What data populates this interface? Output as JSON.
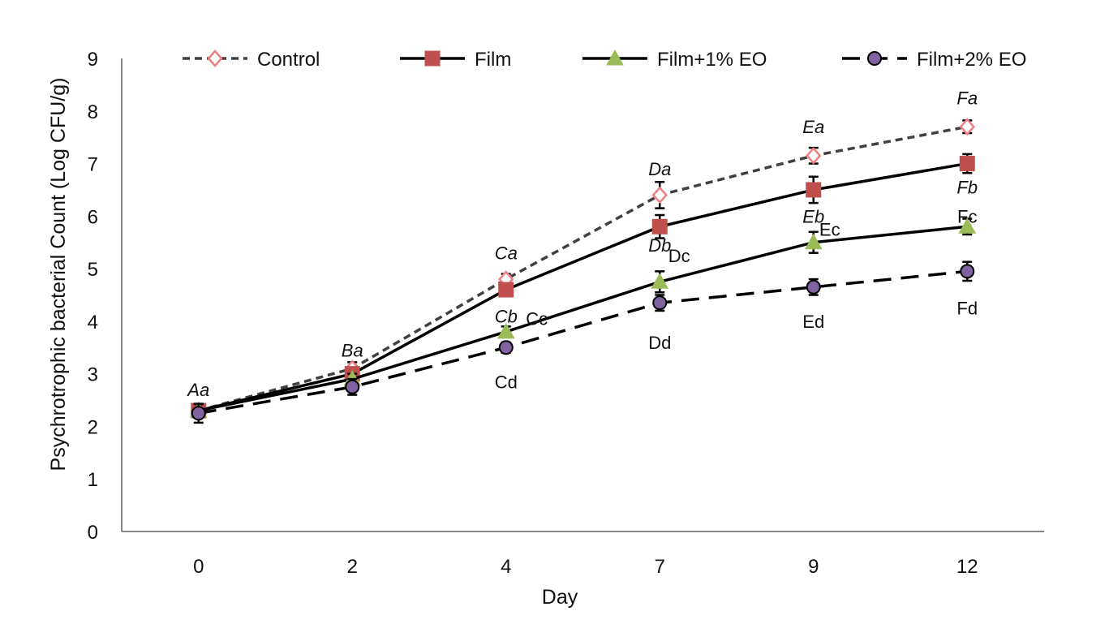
{
  "chart_data": {
    "type": "line",
    "title": "",
    "xlabel": "Day",
    "ylabel": "Psychrotrophic bacterial Count (Log CFU/g)",
    "categories": [
      "0",
      "2",
      "4",
      "7",
      "9",
      "12"
    ],
    "ylim": [
      0,
      9
    ],
    "yticks": [
      "0",
      "1",
      "2",
      "3",
      "4",
      "5",
      "6",
      "7",
      "8",
      "9"
    ],
    "grid": false,
    "legend_position": "top",
    "series": [
      {
        "name": "Control",
        "values": [
          2.3,
          3.1,
          4.8,
          6.4,
          7.15,
          7.7
        ],
        "errors": [
          0.12,
          0.12,
          0.1,
          0.25,
          0.15,
          0.12
        ],
        "color": "#f08080",
        "line_color": "#404040",
        "dash": "dash",
        "marker": "diamond"
      },
      {
        "name": "Film",
        "values": [
          2.3,
          3.0,
          4.6,
          5.8,
          6.5,
          7.0
        ],
        "errors": [
          0.12,
          0.12,
          0.12,
          0.22,
          0.25,
          0.18
        ],
        "color": "#c0504d",
        "line_color": "#000000",
        "dash": "solid",
        "marker": "square"
      },
      {
        "name": "Film+1% EO",
        "values": [
          2.3,
          2.9,
          3.8,
          4.75,
          5.5,
          5.8
        ],
        "errors": [
          0.12,
          0.1,
          0.1,
          0.2,
          0.2,
          0.15
        ],
        "color": "#9bbb59",
        "line_color": "#000000",
        "dash": "solid",
        "marker": "triangle"
      },
      {
        "name": "Film+2% EO",
        "values": [
          2.25,
          2.75,
          3.5,
          4.35,
          4.65,
          4.95
        ],
        "errors": [
          0.18,
          0.15,
          0.1,
          0.15,
          0.15,
          0.18
        ],
        "color": "#8064a2",
        "line_color": "#000000",
        "dash": "longdash",
        "marker": "circle"
      }
    ],
    "annotations": [
      {
        "text": "Aa",
        "italic": true,
        "x": "0",
        "y": 2.7
      },
      {
        "text": "Ba",
        "italic": true,
        "x": "2",
        "y": 3.45
      },
      {
        "text": "Ca",
        "italic": true,
        "x": "4",
        "y": 5.3
      },
      {
        "text": "Cb",
        "italic": true,
        "x": "4",
        "y": 4.1
      },
      {
        "text": "Cc",
        "italic": false,
        "x": "4",
        "y": 4.05
      },
      {
        "text": "Cd",
        "italic": false,
        "x": "4",
        "y": 2.85
      },
      {
        "text": "Da",
        "italic": true,
        "x": "7",
        "y": 6.9
      },
      {
        "text": "Db",
        "italic": true,
        "x": "7",
        "y": 5.45
      },
      {
        "text": "Dc",
        "italic": false,
        "x": "7",
        "y": 5.25
      },
      {
        "text": "Dd",
        "italic": false,
        "x": "7",
        "y": 3.6
      },
      {
        "text": "Ea",
        "italic": true,
        "x": "9",
        "y": 7.7
      },
      {
        "text": "Eb",
        "italic": true,
        "x": "9",
        "y": 6.0
      },
      {
        "text": "Ec",
        "italic": false,
        "x": "9",
        "y": 5.75
      },
      {
        "text": "Ed",
        "italic": false,
        "x": "9",
        "y": 4.0
      },
      {
        "text": "Fa",
        "italic": true,
        "x": "12",
        "y": 8.25
      },
      {
        "text": "Fb",
        "italic": true,
        "x": "12",
        "y": 6.55
      },
      {
        "text": "Fc",
        "italic": false,
        "x": "12",
        "y": 6.0
      },
      {
        "text": "Fd",
        "italic": false,
        "x": "12",
        "y": 4.25
      }
    ]
  }
}
